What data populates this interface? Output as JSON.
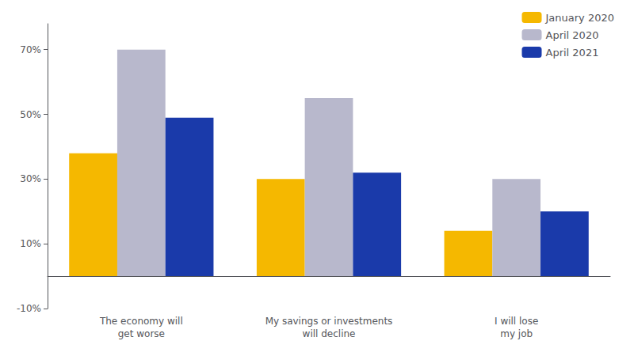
{
  "chart_data": {
    "type": "bar",
    "categories": [
      "The economy will\nget worse",
      "My savings or investments\nwill decline",
      "I will lose\nmy job"
    ],
    "series": [
      {
        "name": "January 2020",
        "color": "#F5B800",
        "values": [
          0.38,
          0.3,
          0.14
        ]
      },
      {
        "name": "April 2020",
        "color": "#B8B8CC",
        "values": [
          0.7,
          0.55,
          0.3
        ]
      },
      {
        "name": "April 2021",
        "color": "#1A3AAA",
        "values": [
          0.49,
          0.32,
          0.2
        ]
      }
    ],
    "ylim": [
      -0.1,
      0.78
    ],
    "yticks": [
      {
        "value": -0.1,
        "label": "-10%"
      },
      {
        "value": 0.1,
        "label": "10%"
      },
      {
        "value": 0.3,
        "label": "30%"
      },
      {
        "value": 0.5,
        "label": "50%"
      },
      {
        "value": 0.7,
        "label": "70%"
      }
    ],
    "grid": false,
    "legend": "upper right"
  }
}
